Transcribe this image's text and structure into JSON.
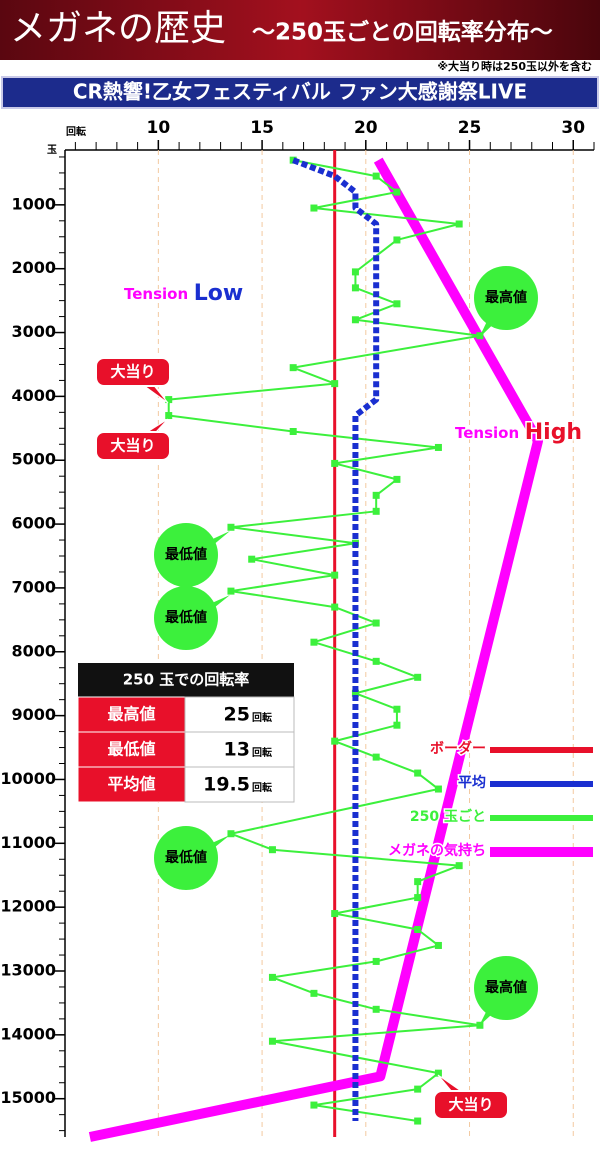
{
  "chart_data": {
    "type": "line",
    "title": "メガネの歴史",
    "subtitle": "～250玉ごとの回転率分布～",
    "note": "※大当り時は250玉以外を含む",
    "machine": "CR熱響!乙女フェスティバル ファン大感謝祭LIVE",
    "x_axis_label": "回転",
    "y_axis_label": "玉",
    "xlim": [
      5.5,
      31
    ],
    "xticks": [
      10,
      15,
      20,
      25,
      30
    ],
    "ylim": [
      0,
      15600
    ],
    "yticks": [
      1000,
      2000,
      3000,
      4000,
      5000,
      6000,
      7000,
      8000,
      9000,
      10000,
      11000,
      12000,
      13000,
      14000,
      15000
    ],
    "grid": true,
    "border": {
      "name": "ボーダー",
      "color": "#e8102a",
      "value": 18.5
    },
    "series": [
      {
        "name": "平均",
        "color": "#1a2fd0",
        "x": [
          300,
          550,
          800,
          1050,
          1300,
          4050,
          4300,
          15350
        ],
        "values": [
          16.5,
          18.5,
          19.5,
          19.5,
          20.5,
          20.5,
          19.5,
          19.5
        ]
      },
      {
        "name": "250 玉ごと",
        "color": "#3cf03c",
        "x": [
          300,
          550,
          800,
          1050,
          1300,
          1550,
          2050,
          2300,
          2550,
          2800,
          3050,
          3550,
          3800,
          4050,
          4300,
          4550,
          4800,
          5050,
          5300,
          5550,
          5800,
          6050,
          6300,
          6550,
          6800,
          7050,
          7300,
          7550,
          7850,
          8150,
          8400,
          8650,
          8900,
          9150,
          9400,
          9650,
          9900,
          10150,
          10850,
          11100,
          11350,
          11600,
          11850,
          12100,
          12350,
          12600,
          12850,
          13100,
          13350,
          13600,
          13850,
          14100,
          14600,
          14850,
          15100,
          15350
        ],
        "values": [
          16.5,
          20.5,
          21.5,
          17.5,
          24.5,
          21.5,
          19.5,
          19.5,
          21.5,
          19.5,
          25.5,
          16.5,
          18.5,
          10.5,
          10.5,
          16.5,
          23.5,
          18.5,
          21.5,
          20.5,
          20.5,
          13.5,
          19.5,
          14.5,
          18.5,
          13.5,
          18.5,
          20.5,
          17.5,
          20.5,
          22.5,
          19.5,
          21.5,
          21.5,
          18.5,
          20.5,
          22.5,
          23.5,
          13.5,
          15.5,
          24.5,
          22.5,
          22.5,
          18.5,
          22.5,
          23.5,
          20.5,
          15.5,
          17.5,
          20.5,
          25.5,
          15.5,
          23.5,
          22.5,
          17.5,
          22.5
        ]
      },
      {
        "name": "メガネの気持ち",
        "color": "#ff00ff",
        "x": [
          300,
          4700,
          14650,
          15600
        ],
        "values": [
          20.6,
          28.3,
          20.7,
          6.7
        ]
      }
    ],
    "annotations": [
      "最高値",
      "大当り",
      "大当り",
      "最低値",
      "最低値",
      "最低値",
      "最高値",
      "大当り"
    ],
    "tension_low": {
      "word": "Tension",
      "level": "Low"
    },
    "tension_high": {
      "word": "Tension",
      "level": "High"
    },
    "table": {
      "title": "250 玉での回転率",
      "rows": [
        [
          "最高値",
          25,
          "回転"
        ],
        [
          "最低値",
          13,
          "回転"
        ],
        [
          "平均値",
          19.5,
          "回転"
        ]
      ]
    }
  }
}
